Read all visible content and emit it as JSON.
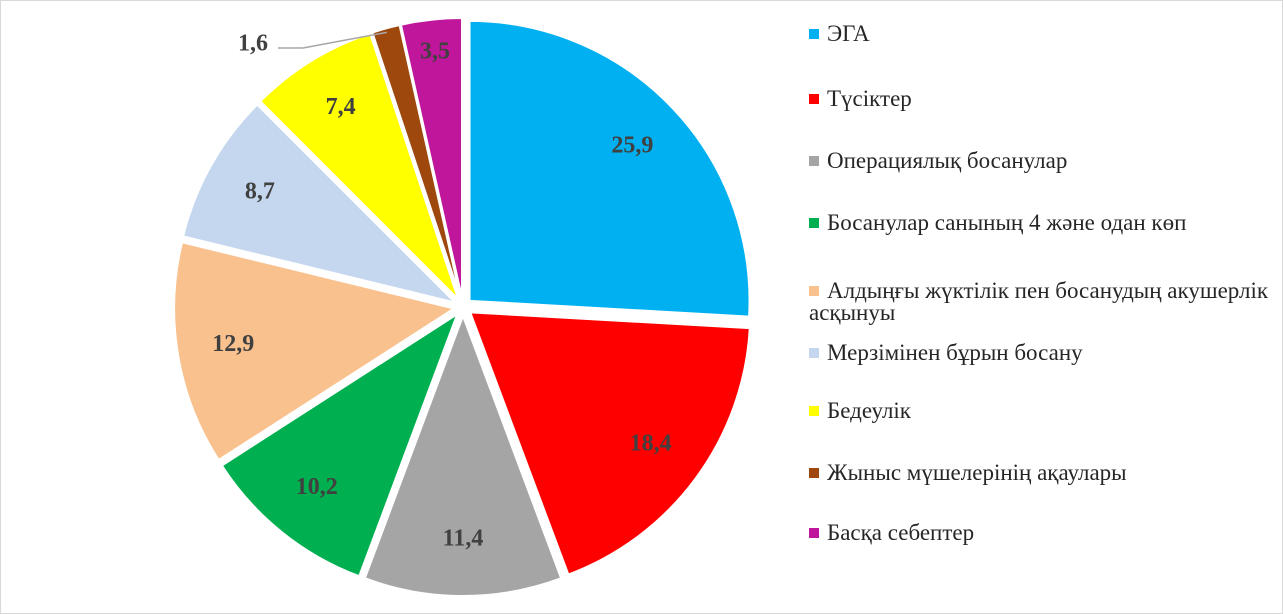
{
  "chart_data": {
    "type": "pie",
    "categories": [
      "ЭГА",
      "Түсіктер",
      "Операциялық босанулар",
      "Босанулар санының 4 және одан көп",
      "Алдыңғы жүктілік пен босанудың акушерлік асқынуы",
      "Мерзімінен бұрын босану",
      "Бедеулік",
      "Жыныс мүшелерінің ақаулары",
      "Басқа себептер"
    ],
    "values": [
      25.9,
      18.4,
      11.4,
      10.2,
      12.9,
      8.7,
      7.4,
      1.6,
      3.5
    ],
    "value_labels": [
      "25,9",
      "18,4",
      "11,4",
      "10,2",
      "12,9",
      "8,7",
      "7,4",
      "1,6",
      "3,5"
    ],
    "colors": [
      "#00b0f0",
      "#ff0000",
      "#a5a5a5",
      "#00b050",
      "#f8c18e",
      "#c5d7ef",
      "#ffff00",
      "#9e480e",
      "#c0169c"
    ],
    "legend": "right"
  }
}
